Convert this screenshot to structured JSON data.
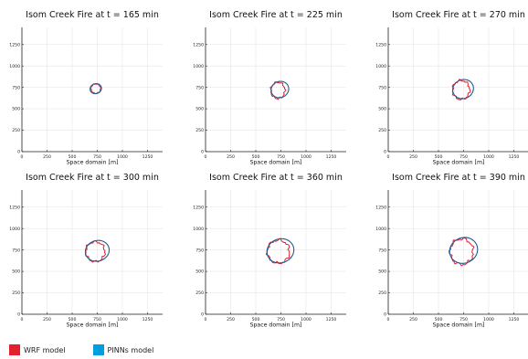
{
  "chart_data": [
    {
      "type": "line",
      "title": "Isom Creek Fire at t = 165 min",
      "xlabel": "Space domain [m]",
      "ylabel": "",
      "xlim": [
        0,
        1400
      ],
      "ylim": [
        0,
        1450
      ],
      "grid": true,
      "xticks": [
        0,
        250,
        500,
        750,
        1000,
        1250
      ],
      "yticks": [
        0,
        250,
        500,
        750,
        1000,
        1250
      ],
      "series": [
        {
          "name": "WRF model",
          "center": [
            735,
            735
          ],
          "radius": [
            48,
            55
          ],
          "roughness": 0.1
        },
        {
          "name": "PINNs model",
          "center": [
            735,
            735
          ],
          "radius": [
            55,
            60
          ],
          "roughness": 0.0
        }
      ]
    },
    {
      "type": "line",
      "title": "Isom Creek Fire at t = 225 min",
      "xlabel": "Space domain [m]",
      "ylabel": "",
      "xlim": [
        0,
        1400
      ],
      "ylim": [
        0,
        1450
      ],
      "grid": true,
      "xticks": [
        0,
        250,
        500,
        750,
        1000,
        1250
      ],
      "yticks": [
        0,
        250,
        500,
        750,
        1000,
        1250
      ],
      "series": [
        {
          "name": "WRF model",
          "center": [
            720,
            715
          ],
          "radius": [
            70,
            95
          ],
          "roughness": 0.12
        },
        {
          "name": "PINNs model",
          "center": [
            740,
            725
          ],
          "radius": [
            85,
            98
          ],
          "roughness": 0.0
        }
      ]
    },
    {
      "type": "line",
      "title": "Isom Creek Fire at t = 270 min",
      "xlabel": "Space domain [m]",
      "ylabel": "",
      "xlim": [
        0,
        1400
      ],
      "ylim": [
        0,
        1450
      ],
      "grid": true,
      "xticks": [
        0,
        250,
        500,
        750,
        1000,
        1250
      ],
      "yticks": [
        0,
        250,
        500,
        750,
        1000,
        1250
      ],
      "series": [
        {
          "name": "WRF model",
          "center": [
            725,
            720
          ],
          "radius": [
            85,
            110
          ],
          "roughness": 0.12
        },
        {
          "name": "PINNs model",
          "center": [
            745,
            730
          ],
          "radius": [
            100,
            115
          ],
          "roughness": 0.0
        }
      ]
    },
    {
      "type": "line",
      "title": "Isom Creek Fire at t = 300 min",
      "xlabel": "Space domain [m]",
      "ylabel": "",
      "xlim": [
        0,
        1400
      ],
      "ylim": [
        0,
        1450
      ],
      "grid": true,
      "xticks": [
        0,
        250,
        500,
        750,
        1000,
        1250
      ],
      "yticks": [
        0,
        250,
        500,
        750,
        1000,
        1250
      ],
      "series": [
        {
          "name": "WRF model",
          "center": [
            730,
            730
          ],
          "radius": [
            95,
            115
          ],
          "roughness": 0.12
        },
        {
          "name": "PINNs model",
          "center": [
            750,
            740
          ],
          "radius": [
            115,
            125
          ],
          "roughness": 0.0
        }
      ]
    },
    {
      "type": "line",
      "title": "Isom Creek Fire at t = 360 min",
      "xlabel": "Space domain [m]",
      "ylabel": "",
      "xlim": [
        0,
        1400
      ],
      "ylim": [
        0,
        1450
      ],
      "grid": true,
      "xticks": [
        0,
        250,
        500,
        750,
        1000,
        1250
      ],
      "yticks": [
        0,
        250,
        500,
        750,
        1000,
        1250
      ],
      "series": [
        {
          "name": "WRF model",
          "center": [
            725,
            730
          ],
          "radius": [
            110,
            135
          ],
          "roughness": 0.12
        },
        {
          "name": "PINNs model",
          "center": [
            745,
            740
          ],
          "radius": [
            130,
            145
          ],
          "roughness": 0.0
        }
      ]
    },
    {
      "type": "line",
      "title": "Isom Creek Fire at t = 390 min",
      "xlabel": "Space domain [m]",
      "ylabel": "",
      "xlim": [
        0,
        1400
      ],
      "ylim": [
        0,
        1450
      ],
      "grid": true,
      "xticks": [
        0,
        250,
        500,
        750,
        1000,
        1250
      ],
      "yticks": [
        0,
        250,
        500,
        750,
        1000,
        1250
      ],
      "series": [
        {
          "name": "WRF model",
          "center": [
            730,
            730
          ],
          "radius": [
            115,
            150
          ],
          "roughness": 0.12
        },
        {
          "name": "PINNs model",
          "center": [
            750,
            745
          ],
          "radius": [
            135,
            155
          ],
          "roughness": 0.0
        }
      ]
    }
  ],
  "legend": [
    {
      "label": "WRF model",
      "color": "#e3202b"
    },
    {
      "label": "PINNs model",
      "color": "#009ee0"
    }
  ],
  "colors": {
    "wrf_line": "#e3202b",
    "pinns_line": "#1f5a96",
    "grid": "#e6e6e6",
    "axis": "#222222"
  }
}
